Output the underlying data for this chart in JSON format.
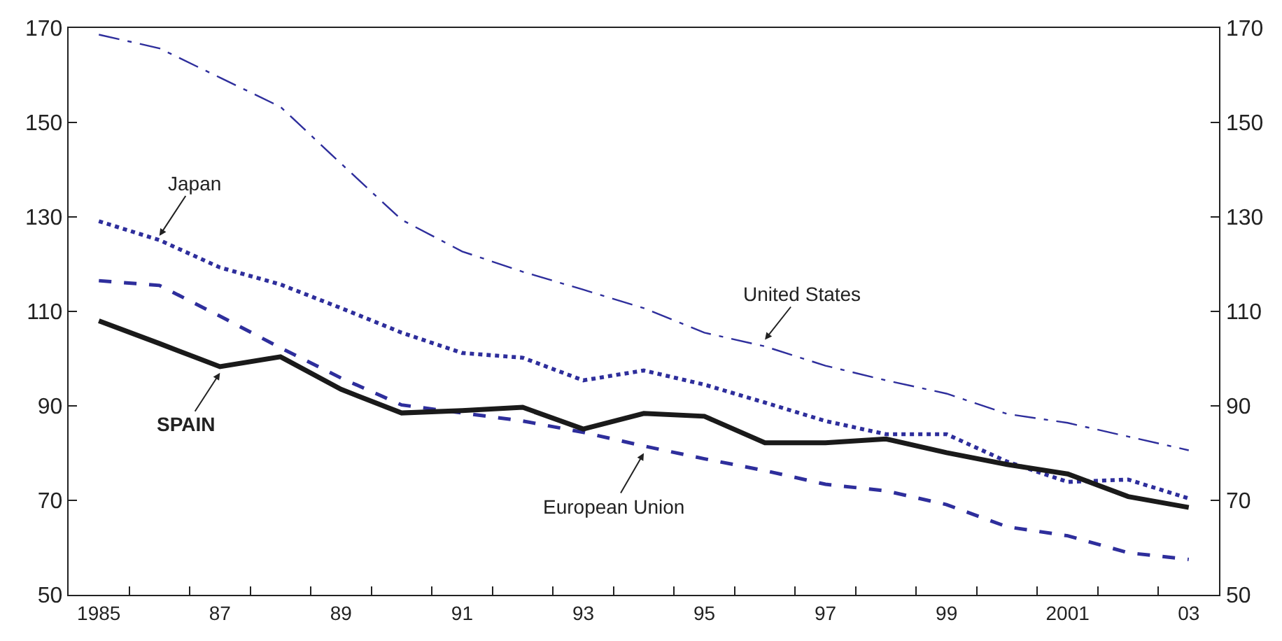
{
  "chart_data": {
    "type": "line",
    "x": [
      1985,
      1986,
      1987,
      1988,
      1989,
      1990,
      1991,
      1992,
      1993,
      1994,
      1995,
      1996,
      1997,
      1998,
      1999,
      2000,
      2001,
      2002,
      2003
    ],
    "series": [
      {
        "color": "#2e2e9c",
        "line_style": "dashdot",
        "values": [
          168.6,
          165.7,
          159.5,
          153.3,
          141.3,
          129.4,
          122.7,
          118.4,
          114.6,
          110.7,
          105.5,
          102.6,
          98.5,
          95.4,
          92.6,
          88.3,
          86.4,
          83.5,
          80.6
        ]
      },
      {
        "color": "#2e2e9c",
        "line_style": "dotted",
        "values": [
          129.1,
          125.1,
          119.3,
          115.7,
          110.7,
          105.5,
          101.2,
          100.2,
          95.4,
          97.5,
          94.5,
          90.7,
          86.8,
          84.0,
          84.0,
          78.2,
          73.9,
          74.4,
          70.4
        ]
      },
      {
        "color": "#2e2e9c",
        "line_style": "dashed",
        "values": [
          116.5,
          115.5,
          109.0,
          102.3,
          95.9,
          90.2,
          88.5,
          86.8,
          84.4,
          81.5,
          78.8,
          76.3,
          73.4,
          72.0,
          69.1,
          64.4,
          62.5,
          58.9,
          57.5
        ]
      },
      {
        "color": "#1a1a1a",
        "line_style": "solid",
        "values": [
          108.0,
          103.2,
          98.3,
          100.4,
          93.5,
          88.5,
          89.0,
          89.7,
          85.1,
          88.4,
          87.8,
          82.2,
          82.2,
          83.0,
          80.1,
          77.6,
          75.6,
          70.8,
          68.5
        ]
      }
    ],
    "xlim": [
      1984.5,
      2003.5
    ],
    "xticks": [
      {
        "value": 1985,
        "label": "1985"
      },
      {
        "value": 1987,
        "label": "87"
      },
      {
        "value": 1989,
        "label": "89"
      },
      {
        "value": 1991,
        "label": "91"
      },
      {
        "value": 1993,
        "label": "93"
      },
      {
        "value": 1995,
        "label": "95"
      },
      {
        "value": 1997,
        "label": "97"
      },
      {
        "value": 1999,
        "label": "99"
      },
      {
        "value": 2001,
        "label": "2001"
      },
      {
        "value": 2003,
        "label": "03"
      },
      {
        "value": 1985.5,
        "label": null
      },
      {
        "value": 1986.5,
        "label": null
      },
      {
        "value": 1987.5,
        "label": null
      },
      {
        "value": 1988.5,
        "label": null
      },
      {
        "value": 1989.5,
        "label": null
      },
      {
        "value": 1990.5,
        "label": null
      },
      {
        "value": 1991.5,
        "label": null
      },
      {
        "value": 1992.5,
        "label": null
      },
      {
        "value": 1993.5,
        "label": null
      },
      {
        "value": 1994.5,
        "label": null
      },
      {
        "value": 1995.5,
        "label": null
      },
      {
        "value": 1996.5,
        "label": null
      },
      {
        "value": 1997.5,
        "label": null
      },
      {
        "value": 1998.5,
        "label": null
      },
      {
        "value": 1999.5,
        "label": null
      },
      {
        "value": 2000.5,
        "label": null
      },
      {
        "value": 2001.5,
        "label": null
      },
      {
        "value": 2002.5,
        "label": null
      }
    ],
    "ylim": [
      50,
      170
    ],
    "yticks": [
      50,
      70,
      90,
      110,
      130,
      150,
      170
    ],
    "y2lim": [
      50,
      170
    ],
    "y2ticks": [
      50,
      70,
      90,
      110,
      130,
      150,
      170
    ],
    "marker": "none",
    "annotations": [
      {
        "text": "Japan",
        "x": 1986,
        "y": 126
      },
      {
        "text": "SPAIN",
        "x": 1987,
        "y": 97
      },
      {
        "text": "European Union",
        "x": 1994,
        "y": 80
      },
      {
        "text": "United States",
        "x": 1996,
        "y": 104
      }
    ]
  }
}
